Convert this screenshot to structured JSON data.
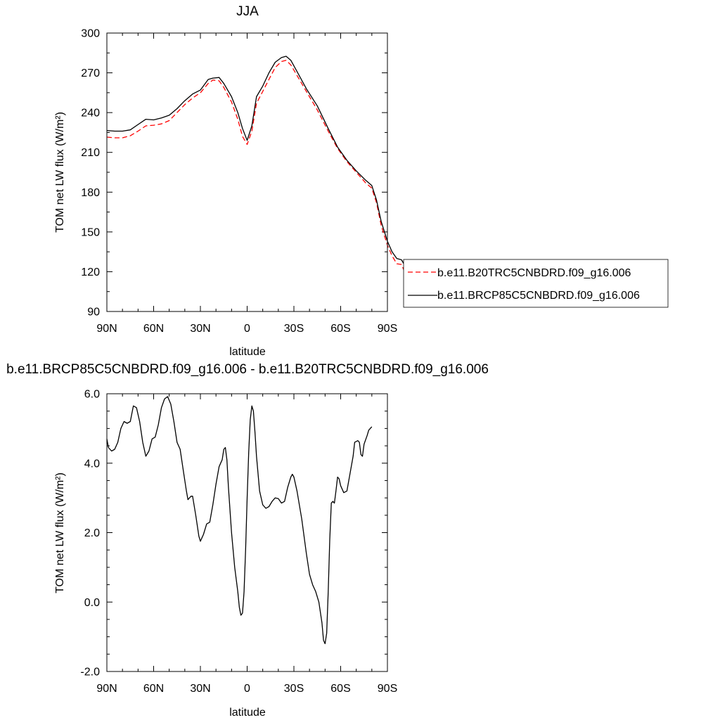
{
  "chart_data": [
    {
      "type": "line",
      "title": "JJA",
      "xlabel": "latitude",
      "ylabel": "TOM net LW flux (W/m²)",
      "ylim": [
        90,
        300
      ],
      "xlim": [
        90,
        -90
      ],
      "x_tick_values": [
        90,
        60,
        30,
        0,
        -30,
        -60,
        -90
      ],
      "x_tick_labels": [
        "90N",
        "60N",
        "30N",
        "0",
        "30S",
        "60S",
        "90S"
      ],
      "y_tick_values": [
        90,
        120,
        150,
        180,
        210,
        240,
        270,
        300
      ],
      "y_tick_labels": [
        "90",
        "120",
        "150",
        "180",
        "210",
        "240",
        "270",
        "300"
      ],
      "legend_position": "right",
      "series": [
        {
          "name": "b.e11.B20TRC5CNBDRD.f09_g16.006",
          "color": "#ff0000",
          "dash": "dashed",
          "points": [
            [
              90,
              221.5
            ],
            [
              85,
              221
            ],
            [
              80,
              221
            ],
            [
              75,
              222.5
            ],
            [
              70,
              226
            ],
            [
              65,
              230
            ],
            [
              60,
              230.5
            ],
            [
              55,
              231.5
            ],
            [
              50,
              234
            ],
            [
              45,
              240
            ],
            [
              40,
              246
            ],
            [
              35,
              251
            ],
            [
              30,
              255
            ],
            [
              25,
              262
            ],
            [
              22,
              264.5
            ],
            [
              18,
              264
            ],
            [
              15,
              259
            ],
            [
              10,
              248
            ],
            [
              6,
              235
            ],
            [
              3,
              222
            ],
            [
              0,
              216
            ],
            [
              -3,
              226
            ],
            [
              -6,
              247
            ],
            [
              -10,
              256
            ],
            [
              -14,
              265
            ],
            [
              -18,
              274
            ],
            [
              -22,
              278.5
            ],
            [
              -25,
              279.5
            ],
            [
              -28,
              276
            ],
            [
              -32,
              268
            ],
            [
              -38,
              256
            ],
            [
              -45,
              242
            ],
            [
              -52,
              226
            ],
            [
              -58,
              213
            ],
            [
              -64,
              203
            ],
            [
              -70,
              195
            ],
            [
              -76,
              187
            ],
            [
              -80,
              183
            ],
            [
              -83,
              172
            ],
            [
              -86,
              155
            ],
            [
              -90,
              140
            ],
            [
              -93,
              132
            ],
            [
              -96,
              126
            ],
            [
              -99,
              125.5
            ],
            [
              -101,
              120
            ],
            [
              -103,
              114
            ]
          ]
        },
        {
          "name": "b.e11.BRCP85C5CNBDRD.f09_g16.006",
          "color": "#000000",
          "dash": "solid",
          "points": [
            [
              90,
              226.5
            ],
            [
              85,
              226
            ],
            [
              80,
              226
            ],
            [
              75,
              227
            ],
            [
              70,
              231
            ],
            [
              65,
              235
            ],
            [
              60,
              234.5
            ],
            [
              55,
              236
            ],
            [
              50,
              238
            ],
            [
              45,
              243
            ],
            [
              40,
              249
            ],
            [
              35,
              254
            ],
            [
              30,
              257
            ],
            [
              25,
              265
            ],
            [
              22,
              266
            ],
            [
              18,
              266.5
            ],
            [
              15,
              262
            ],
            [
              10,
              252
            ],
            [
              6,
              240
            ],
            [
              3,
              228
            ],
            [
              0,
              219
            ],
            [
              -3,
              230
            ],
            [
              -6,
              252
            ],
            [
              -10,
              260
            ],
            [
              -14,
              270
            ],
            [
              -18,
              278
            ],
            [
              -22,
              281.5
            ],
            [
              -25,
              282.5
            ],
            [
              -28,
              279.5
            ],
            [
              -32,
              271
            ],
            [
              -38,
              258
            ],
            [
              -45,
              245
            ],
            [
              -52,
              228
            ],
            [
              -58,
              214
            ],
            [
              -64,
              204
            ],
            [
              -70,
              196
            ],
            [
              -76,
              189
            ],
            [
              -80,
              185
            ],
            [
              -83,
              174
            ],
            [
              -86,
              158
            ],
            [
              -90,
              143
            ],
            [
              -93,
              135
            ],
            [
              -96,
              130
            ],
            [
              -99,
              129
            ],
            [
              -101,
              125
            ],
            [
              -103,
              119
            ]
          ]
        }
      ]
    },
    {
      "type": "line",
      "title": "b.e11.BRCP85C5CNBDRD.f09_g16.006 - b.e11.B20TRC5CNBDRD.f09_g16.006",
      "xlabel": "latitude",
      "ylabel": "TOM net LW flux (W/m²)",
      "ylim": [
        -2,
        6
      ],
      "xlim": [
        90,
        -90
      ],
      "x_tick_values": [
        90,
        60,
        30,
        0,
        -30,
        -60,
        -90
      ],
      "x_tick_labels": [
        "90N",
        "60N",
        "30N",
        "0",
        "30S",
        "60S",
        "90S"
      ],
      "y_tick_values": [
        -2,
        0,
        2,
        4,
        6
      ],
      "y_tick_labels": [
        "-2.0",
        "0.0",
        "2.0",
        "4.0",
        "6.0"
      ],
      "series": [
        {
          "color": "#000000",
          "dash": "solid",
          "points": [
            [
              90,
              4.7
            ],
            [
              89,
              4.45
            ],
            [
              87,
              4.35
            ],
            [
              85,
              4.4
            ],
            [
              83,
              4.6
            ],
            [
              81,
              5.0
            ],
            [
              79,
              5.2
            ],
            [
              77,
              5.15
            ],
            [
              75,
              5.2
            ],
            [
              73,
              5.65
            ],
            [
              71,
              5.6
            ],
            [
              69,
              5.2
            ],
            [
              67,
              4.6
            ],
            [
              65,
              4.2
            ],
            [
              63,
              4.35
            ],
            [
              61,
              4.7
            ],
            [
              59,
              4.75
            ],
            [
              57,
              5.1
            ],
            [
              55,
              5.6
            ],
            [
              53,
              5.85
            ],
            [
              51,
              5.92
            ],
            [
              49,
              5.7
            ],
            [
              47,
              5.2
            ],
            [
              45,
              4.6
            ],
            [
              43,
              4.4
            ],
            [
              41,
              3.8
            ],
            [
              39,
              3.2
            ],
            [
              38,
              2.95
            ],
            [
              36,
              3.05
            ],
            [
              35,
              3.05
            ],
            [
              33,
              2.5
            ],
            [
              31,
              1.9
            ],
            [
              30,
              1.75
            ],
            [
              28,
              1.95
            ],
            [
              26,
              2.25
            ],
            [
              24,
              2.3
            ],
            [
              22,
              2.8
            ],
            [
              20,
              3.4
            ],
            [
              18,
              3.9
            ],
            [
              16,
              4.1
            ],
            [
              15,
              4.4
            ],
            [
              14,
              4.45
            ],
            [
              13,
              4.1
            ],
            [
              12,
              3.3
            ],
            [
              10,
              2.0
            ],
            [
              8,
              1.0
            ],
            [
              6,
              0.3
            ],
            [
              5,
              -0.15
            ],
            [
              4,
              -0.38
            ],
            [
              3,
              -0.32
            ],
            [
              2,
              0.3
            ],
            [
              1,
              1.5
            ],
            [
              0,
              3.0
            ],
            [
              -1,
              4.3
            ],
            [
              -2,
              5.25
            ],
            [
              -3,
              5.65
            ],
            [
              -4,
              5.5
            ],
            [
              -5,
              4.9
            ],
            [
              -6,
              4.2
            ],
            [
              -8,
              3.2
            ],
            [
              -10,
              2.8
            ],
            [
              -12,
              2.7
            ],
            [
              -14,
              2.75
            ],
            [
              -16,
              2.9
            ],
            [
              -18,
              3.0
            ],
            [
              -20,
              2.98
            ],
            [
              -22,
              2.85
            ],
            [
              -24,
              2.9
            ],
            [
              -26,
              3.3
            ],
            [
              -28,
              3.6
            ],
            [
              -29,
              3.68
            ],
            [
              -30,
              3.6
            ],
            [
              -32,
              3.2
            ],
            [
              -35,
              2.4
            ],
            [
              -38,
              1.4
            ],
            [
              -40,
              0.8
            ],
            [
              -42,
              0.5
            ],
            [
              -44,
              0.3
            ],
            [
              -46,
              0.0
            ],
            [
              -48,
              -0.6
            ],
            [
              -49,
              -1.1
            ],
            [
              -50,
              -1.2
            ],
            [
              -51,
              -0.9
            ],
            [
              -52,
              0.3
            ],
            [
              -53,
              1.8
            ],
            [
              -54,
              2.85
            ],
            [
              -55,
              2.9
            ],
            [
              -56,
              2.85
            ],
            [
              -57,
              3.2
            ],
            [
              -58,
              3.6
            ],
            [
              -59,
              3.55
            ],
            [
              -60,
              3.35
            ],
            [
              -62,
              3.15
            ],
            [
              -64,
              3.2
            ],
            [
              -66,
              3.7
            ],
            [
              -68,
              4.2
            ],
            [
              -69,
              4.6
            ],
            [
              -71,
              4.65
            ],
            [
              -72,
              4.6
            ],
            [
              -73,
              4.25
            ],
            [
              -74,
              4.2
            ],
            [
              -75,
              4.55
            ],
            [
              -77,
              4.8
            ],
            [
              -78,
              4.95
            ],
            [
              -80,
              5.05
            ]
          ]
        }
      ]
    }
  ]
}
